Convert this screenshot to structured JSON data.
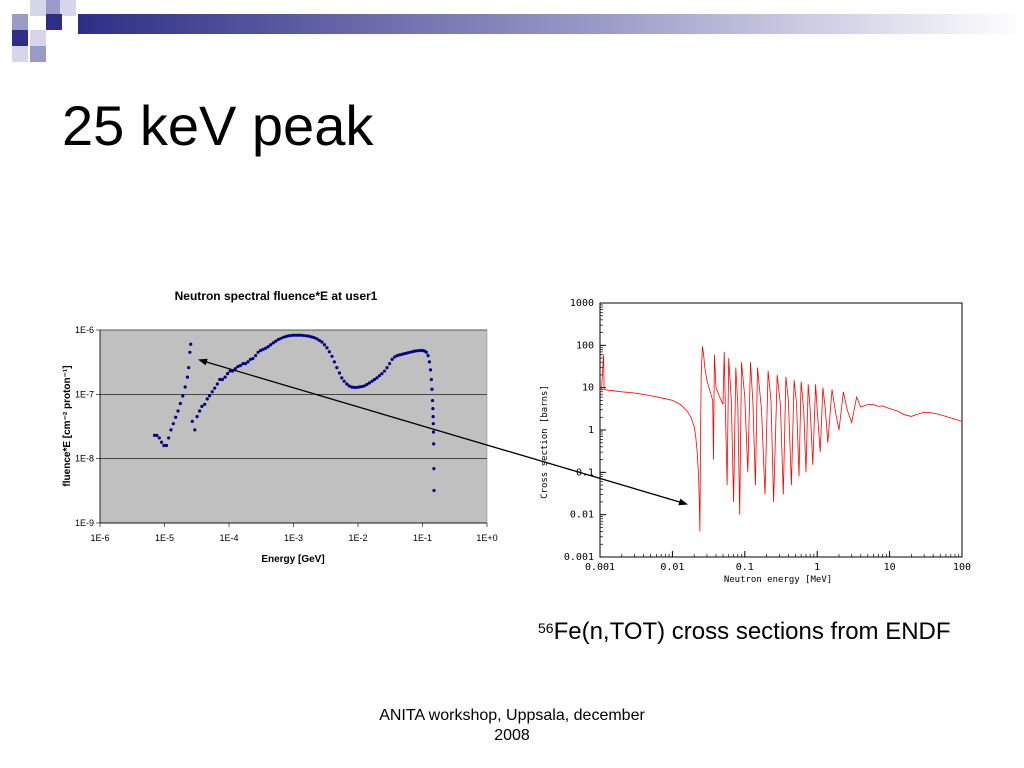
{
  "slide": {
    "title": "25 keV peak",
    "caption_sup": "56",
    "caption_rest": "Fe(n,TOT) cross sections from ENDF",
    "footer_line1": "ANITA workshop, Uppsala, december",
    "footer_line2": "2008"
  },
  "colors": {
    "decor_primary": "#2e2e86",
    "decor_secondary": "#9a9ac8",
    "decor_light": "#d6d6ea",
    "fluence_series": "#000080",
    "fluence_plot_bg": "#c0c0c0",
    "xs_series": "#ff0000",
    "arrow": "#000000"
  },
  "chart_data": [
    {
      "type": "scatter",
      "title": "Neutron spectral fluence*E at user1",
      "xlabel": "Energy [GeV]",
      "ylabel": "fluence*E [cm⁻² proton⁻¹]",
      "x_scale": "log",
      "y_scale": "log",
      "xlim": [
        1e-06,
        1
      ],
      "ylim": [
        1e-09,
        1e-06
      ],
      "x_ticks": [
        "1E-6",
        "1E-5",
        "1E-4",
        "1E-3",
        "1E-2",
        "1E-1",
        "1E+0"
      ],
      "y_ticks": [
        "1E-9",
        "1E-8",
        "1E-7",
        "1E-6"
      ],
      "grid": "horizontal",
      "series": [
        {
          "points": [
            [
              7e-06,
              2.3e-08
            ],
            [
              7.6e-06,
              2.3e-08
            ],
            [
              8.3e-06,
              2.1e-08
            ],
            [
              9e-06,
              1.8e-08
            ],
            [
              9.8e-06,
              1.6e-08
            ],
            [
              1.07e-05,
              1.6e-08
            ],
            [
              1.16e-05,
              2.1e-08
            ],
            [
              1.26e-05,
              2.8e-08
            ],
            [
              1.37e-05,
              3.5e-08
            ],
            [
              1.49e-05,
              4.4e-08
            ],
            [
              1.62e-05,
              5.5e-08
            ],
            [
              1.76e-05,
              7.2e-08
            ],
            [
              1.92e-05,
              9.4e-08
            ],
            [
              2.09e-05,
              1.3e-07
            ],
            [
              2.27e-05,
              1.85e-07
            ],
            [
              2.37e-05,
              2.6e-07
            ],
            [
              2.47e-05,
              4.5e-07
            ],
            [
              2.55e-05,
              6e-07
            ],
            [
              2.7e-05,
              3.8e-08
            ],
            [
              2.95e-05,
              2.8e-08
            ],
            [
              3.2e-05,
              4.5e-08
            ],
            [
              3.5e-05,
              5.5e-08
            ],
            [
              3.8e-05,
              6.5e-08
            ],
            [
              4.2e-05,
              7e-08
            ],
            [
              4.6e-05,
              8.5e-08
            ],
            [
              5e-05,
              9.5e-08
            ],
            [
              5.5e-05,
              1.1e-07
            ],
            [
              6e-05,
              1.25e-07
            ],
            [
              6.6e-05,
              1.45e-07
            ],
            [
              7.2e-05,
              1.7e-07
            ],
            [
              7.9e-05,
              1.7e-07
            ],
            [
              8.7e-05,
              1.85e-07
            ],
            [
              9.5e-05,
              2.1e-07
            ],
            [
              0.000104,
              2.3e-07
            ],
            [
              0.000114,
              2.3e-07
            ],
            [
              0.000125,
              2.5e-07
            ],
            [
              0.000137,
              2.7e-07
            ],
            [
              0.00015,
              2.8e-07
            ],
            [
              0.000165,
              3e-07
            ],
            [
              0.00018,
              3e-07
            ],
            [
              0.000197,
              3.2e-07
            ],
            [
              0.000215,
              3.5e-07
            ],
            [
              0.000235,
              3.6e-07
            ],
            [
              0.000258,
              4e-07
            ],
            [
              0.000282,
              4.5e-07
            ],
            [
              0.000309,
              4.8e-07
            ],
            [
              0.000338,
              5e-07
            ],
            [
              0.00037,
              5.2e-07
            ],
            [
              0.000405,
              5.5e-07
            ],
            [
              0.000443,
              5.9e-07
            ],
            [
              0.000485,
              6.3e-07
            ],
            [
              0.00053,
              6.7e-07
            ],
            [
              0.00058,
              7.1e-07
            ],
            [
              0.000635,
              7.4e-07
            ],
            [
              0.000695,
              7.7e-07
            ],
            [
              0.00076,
              7.9e-07
            ],
            [
              0.00083,
              8.1e-07
            ],
            [
              0.00091,
              8.2e-07
            ],
            [
              0.001,
              8.3e-07
            ],
            [
              0.0011,
              8.3e-07
            ],
            [
              0.0012,
              8.3e-07
            ],
            [
              0.00132,
              8.3e-07
            ],
            [
              0.00145,
              8.2e-07
            ],
            [
              0.0016,
              8.1e-07
            ],
            [
              0.00175,
              8e-07
            ],
            [
              0.00192,
              7.8e-07
            ],
            [
              0.0021,
              7.6e-07
            ],
            [
              0.0023,
              7.3e-07
            ],
            [
              0.00252,
              6.9e-07
            ],
            [
              0.00276,
              6.5e-07
            ],
            [
              0.00302,
              5.9e-07
            ],
            [
              0.0033,
              5.3e-07
            ],
            [
              0.0036,
              4.6e-07
            ],
            [
              0.00395,
              3.9e-07
            ],
            [
              0.0043,
              3.2e-07
            ],
            [
              0.0047,
              2.6e-07
            ],
            [
              0.00515,
              2.15e-07
            ],
            [
              0.0056,
              1.8e-07
            ],
            [
              0.0061,
              1.6e-07
            ],
            [
              0.0067,
              1.45e-07
            ],
            [
              0.0073,
              1.35e-07
            ],
            [
              0.008,
              1.3e-07
            ],
            [
              0.0087,
              1.28e-07
            ],
            [
              0.0095,
              1.28e-07
            ],
            [
              0.0104,
              1.3e-07
            ],
            [
              0.0114,
              1.32e-07
            ],
            [
              0.0125,
              1.35e-07
            ],
            [
              0.0137,
              1.42e-07
            ],
            [
              0.015,
              1.5e-07
            ],
            [
              0.0165,
              1.6e-07
            ],
            [
              0.018,
              1.7e-07
            ],
            [
              0.0197,
              1.8e-07
            ],
            [
              0.0215,
              1.95e-07
            ],
            [
              0.0235,
              2.1e-07
            ],
            [
              0.0258,
              2.3e-07
            ],
            [
              0.0282,
              2.6e-07
            ],
            [
              0.0309,
              3e-07
            ],
            [
              0.0338,
              3.5e-07
            ],
            [
              0.037,
              3.8e-07
            ],
            [
              0.0405,
              4e-07
            ],
            [
              0.0443,
              4.1e-07
            ],
            [
              0.0485,
              4.2e-07
            ],
            [
              0.053,
              4.3e-07
            ],
            [
              0.058,
              4.4e-07
            ],
            [
              0.0635,
              4.5e-07
            ],
            [
              0.0695,
              4.6e-07
            ],
            [
              0.076,
              4.7e-07
            ],
            [
              0.083,
              4.75e-07
            ],
            [
              0.091,
              4.8e-07
            ],
            [
              0.1,
              4.8e-07
            ],
            [
              0.108,
              4.7e-07
            ],
            [
              0.115,
              4.5e-07
            ],
            [
              0.122,
              4e-07
            ],
            [
              0.128,
              3.2e-07
            ],
            [
              0.133,
              2.4e-07
            ],
            [
              0.137,
              1.7e-07
            ],
            [
              0.14,
              1.2e-07
            ],
            [
              0.143,
              8e-08
            ],
            [
              0.145,
              6e-08
            ],
            [
              0.146,
              4.5e-08
            ],
            [
              0.147,
              3.5e-08
            ],
            [
              0.148,
              2.6e-08
            ],
            [
              0.149,
              1.7e-08
            ],
            [
              0.15,
              7e-09
            ],
            [
              0.151,
              3.2e-09
            ]
          ]
        }
      ]
    },
    {
      "type": "line",
      "title": "",
      "xlabel": "Neutron energy [MeV]",
      "ylabel": "Cross section [barns]",
      "x_scale": "log",
      "y_scale": "log",
      "xlim": [
        0.001,
        100
      ],
      "ylim": [
        0.001,
        1000
      ],
      "x_ticks": [
        "0.001",
        "0.01",
        "0.1",
        "1",
        "10",
        "100"
      ],
      "y_ticks": [
        "0.001",
        "0.01",
        "0.1",
        "1",
        "10",
        "100",
        "1000"
      ],
      "grid": "none",
      "series": [
        {
          "points": [
            [
              0.001,
              9.0
            ],
            [
              0.00105,
              9.0
            ],
            [
              0.00112,
              60.0
            ],
            [
              0.00114,
              9.0
            ],
            [
              0.0015,
              8.5
            ],
            [
              0.002,
              8.0
            ],
            [
              0.003,
              7.5
            ],
            [
              0.005,
              6.5
            ],
            [
              0.008,
              5.5
            ],
            [
              0.01,
              5.0
            ],
            [
              0.013,
              4.0
            ],
            [
              0.016,
              2.8
            ],
            [
              0.018,
              2.0
            ],
            [
              0.02,
              1.2
            ],
            [
              0.021,
              0.7
            ],
            [
              0.022,
              0.3
            ],
            [
              0.023,
              0.08
            ],
            [
              0.0235,
              0.02
            ],
            [
              0.024,
              0.004
            ],
            [
              0.0245,
              1.0
            ],
            [
              0.025,
              20.0
            ],
            [
              0.026,
              95.0
            ],
            [
              0.027,
              60.0
            ],
            [
              0.028,
              30.0
            ],
            [
              0.03,
              15.0
            ],
            [
              0.032,
              10.0
            ],
            [
              0.034,
              7.0
            ],
            [
              0.036,
              5.0
            ],
            [
              0.037,
              0.2
            ],
            [
              0.038,
              60.0
            ],
            [
              0.04,
              10.0
            ],
            [
              0.045,
              6.0
            ],
            [
              0.05,
              4.0
            ],
            [
              0.052,
              70.0
            ],
            [
              0.054,
              3.0
            ],
            [
              0.057,
              0.05
            ],
            [
              0.06,
              50.0
            ],
            [
              0.065,
              5.0
            ],
            [
              0.07,
              0.02
            ],
            [
              0.075,
              30.0
            ],
            [
              0.08,
              4.0
            ],
            [
              0.085,
              0.01
            ],
            [
              0.09,
              40.0
            ],
            [
              0.1,
              6.0
            ],
            [
              0.11,
              0.1
            ],
            [
              0.12,
              40.0
            ],
            [
              0.13,
              4.0
            ],
            [
              0.14,
              0.05
            ],
            [
              0.15,
              30.0
            ],
            [
              0.17,
              3.0
            ],
            [
              0.19,
              0.03
            ],
            [
              0.21,
              25.0
            ],
            [
              0.23,
              5.0
            ],
            [
              0.25,
              0.02
            ],
            [
              0.28,
              20.0
            ],
            [
              0.31,
              4.0
            ],
            [
              0.34,
              0.03
            ],
            [
              0.37,
              18.0
            ],
            [
              0.4,
              5.0
            ],
            [
              0.44,
              0.05
            ],
            [
              0.48,
              15.0
            ],
            [
              0.52,
              4.0
            ],
            [
              0.56,
              0.08
            ],
            [
              0.6,
              14.0
            ],
            [
              0.65,
              3.0
            ],
            [
              0.7,
              0.1
            ],
            [
              0.75,
              12.0
            ],
            [
              0.8,
              3.0
            ],
            [
              0.87,
              0.15
            ],
            [
              0.95,
              12.0
            ],
            [
              1.0,
              3.0
            ],
            [
              1.1,
              0.3
            ],
            [
              1.2,
              10.0
            ],
            [
              1.3,
              3.0
            ],
            [
              1.4,
              0.5
            ],
            [
              1.6,
              9.0
            ],
            [
              1.8,
              2.5
            ],
            [
              2.0,
              1.0
            ],
            [
              2.3,
              8.0
            ],
            [
              2.6,
              3.0
            ],
            [
              3.0,
              1.5
            ],
            [
              3.5,
              6.0
            ],
            [
              4.0,
              3.5
            ],
            [
              5.0,
              4.0
            ],
            [
              6.0,
              4.0
            ],
            [
              7.0,
              3.6
            ],
            [
              8.0,
              3.7
            ],
            [
              10.0,
              3.2
            ],
            [
              13.0,
              2.8
            ],
            [
              16.0,
              2.3
            ],
            [
              20.0,
              2.1
            ],
            [
              25.0,
              2.4
            ],
            [
              30.0,
              2.6
            ],
            [
              35.0,
              2.6
            ],
            [
              45.0,
              2.4
            ],
            [
              60.0,
              2.1
            ],
            [
              80.0,
              1.8
            ],
            [
              100.0,
              1.6
            ]
          ]
        }
      ]
    }
  ]
}
